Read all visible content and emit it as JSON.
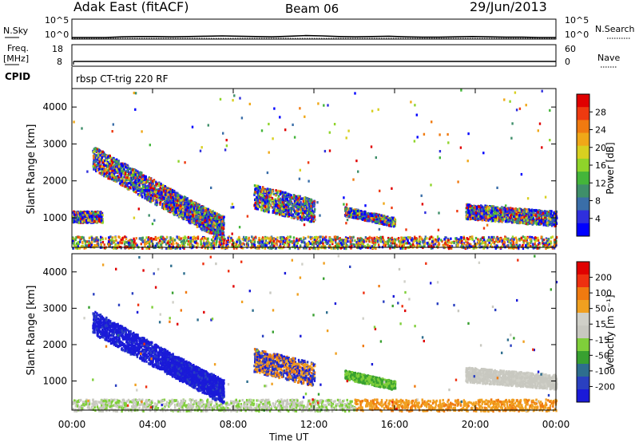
{
  "header": {
    "station": "Adak East (fitACF)",
    "beam": "Beam 06",
    "date": "29/Jun/2013"
  },
  "side_labels": {
    "nsky": "N.Sky",
    "nsearch": "N.Search",
    "freq": "Freq.",
    "freq_unit": "[MHz]",
    "nave": "Nave",
    "cpid": "CPID"
  },
  "cpid_text": "rbsp CT-trig 220 RF",
  "colors": {
    "power": [
      "#0000ff",
      "#2f2fdd",
      "#3a6ea8",
      "#3f8f6a",
      "#44b53a",
      "#8fd42a",
      "#d8d020",
      "#f0a818",
      "#f07a10",
      "#ee3a10",
      "#e00000"
    ],
    "velocity": [
      "#1a1ad8",
      "#2a40c0",
      "#2e6e8e",
      "#38a030",
      "#7fcf3a",
      "#c8c8c0",
      "#d0d0c8",
      "#f0a020",
      "#f07a10",
      "#ee3010",
      "#e00000"
    ]
  },
  "chart_data": [
    {
      "type": "line",
      "name": "N.Sky / N.Search noise",
      "y_ticks_left": [
        "10^5",
        "10^0"
      ],
      "y_ticks_right": [
        "10^5",
        "10^0"
      ],
      "values": [
        1,
        1,
        1,
        1.2,
        1.3,
        1.3,
        1.2,
        1.3,
        1.4,
        1.5,
        1.4,
        1.3,
        1.2,
        1.4,
        1.6,
        1.5,
        1.3,
        1.2,
        1.3,
        1.4,
        1.2,
        1.1,
        1.1,
        1.2,
        1.3,
        1.2,
        1.1,
        1.1,
        1,
        1
      ]
    },
    {
      "type": "line",
      "name": "Freq / Nave",
      "y_ticks_left": [
        "18",
        "8"
      ],
      "y_ticks_right": [
        "60",
        "0"
      ],
      "freq_mhz": 10.5,
      "nave": 40
    },
    {
      "type": "heatmap",
      "title": "Power",
      "ylabel": "Slant Range [km]",
      "y_ticks": [
        "1000",
        "2000",
        "3000",
        "4000"
      ],
      "ylim": [
        200,
        4500
      ],
      "colorbar_label": "Power [dB]",
      "colorbar_ticks": [
        "4",
        "8",
        "12",
        "16",
        "20",
        "24",
        "28"
      ],
      "features": [
        {
          "start_h": 1.0,
          "end_h": 7.5,
          "range_start_km": 2650,
          "range_end_km": 700,
          "width_km": 320
        },
        {
          "start_h": 4.5,
          "end_h": 7.5,
          "range_start_km": 1600,
          "range_end_km": 800,
          "width_km": 260
        },
        {
          "start_h": 9.0,
          "end_h": 12.0,
          "range_start_km": 1600,
          "range_end_km": 1200,
          "width_km": 320
        },
        {
          "start_h": 13.5,
          "end_h": 16.0,
          "range_start_km": 1200,
          "range_end_km": 900,
          "width_km": 120
        },
        {
          "start_h": 19.5,
          "end_h": 24.0,
          "range_start_km": 1200,
          "range_end_km": 1000,
          "width_km": 200
        },
        {
          "start_h": 0.0,
          "end_h": 1.5,
          "range_start_km": 1050,
          "range_end_km": 1050,
          "width_km": 150
        }
      ]
    },
    {
      "type": "heatmap",
      "title": "Velocity",
      "ylabel": "Slant Range [km]",
      "y_ticks": [
        "1000",
        "2000",
        "3000",
        "4000"
      ],
      "ylim": [
        200,
        4500
      ],
      "xlabel": "Time UT",
      "x_ticks": [
        "00:00",
        "04:00",
        "08:00",
        "12:00",
        "16:00",
        "20:00",
        "00:00"
      ],
      "colorbar_label": "Velocity [m s⁻¹]",
      "colorbar_ticks": [
        "200",
        "100",
        "50",
        "15",
        "-15",
        "-50",
        "-100",
        "-200"
      ],
      "features": [
        {
          "start_h": 1.0,
          "end_h": 7.5,
          "range_start_km": 2650,
          "range_end_km": 700,
          "width_km": 320
        },
        {
          "start_h": 4.5,
          "end_h": 7.5,
          "range_start_km": 1600,
          "range_end_km": 800,
          "width_km": 260
        },
        {
          "start_h": 9.0,
          "end_h": 12.0,
          "range_start_km": 1600,
          "range_end_km": 1200,
          "width_km": 320
        },
        {
          "start_h": 13.5,
          "end_h": 16.0,
          "range_start_km": 1200,
          "range_end_km": 900,
          "width_km": 120
        },
        {
          "start_h": 19.5,
          "end_h": 24.0,
          "range_start_km": 1200,
          "range_end_km": 1000,
          "width_km": 200
        }
      ]
    }
  ]
}
